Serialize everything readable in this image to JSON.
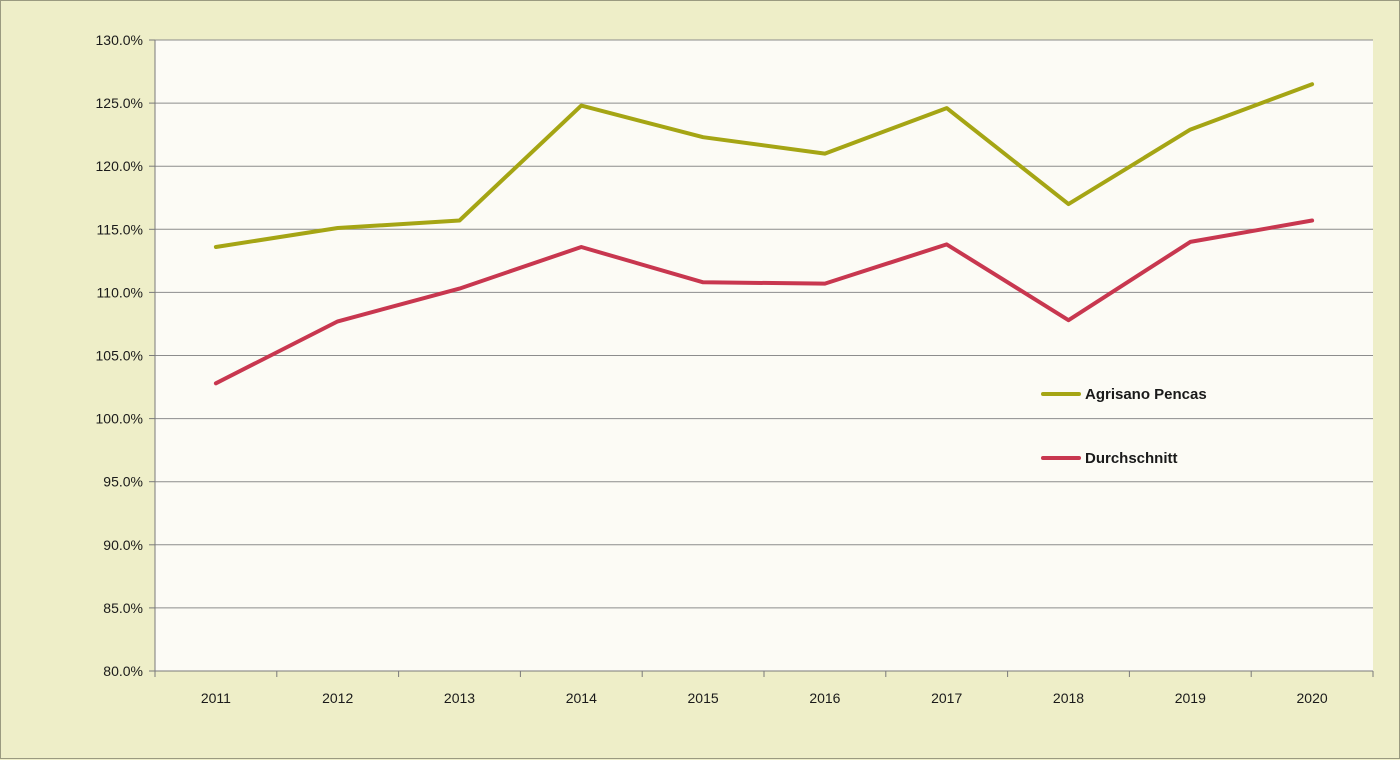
{
  "chart_data": {
    "type": "line",
    "title": "",
    "xlabel": "",
    "ylabel": "",
    "categories": [
      "2011",
      "2012",
      "2013",
      "2014",
      "2015",
      "2016",
      "2017",
      "2018",
      "2019",
      "2020"
    ],
    "ylim": [
      80,
      130
    ],
    "ytick_step": 5,
    "ytick_labels": [
      "80.0%",
      "85.0%",
      "90.0%",
      "95.0%",
      "100.0%",
      "105.0%",
      "110.0%",
      "115.0%",
      "120.0%",
      "125.0%",
      "130.0%"
    ],
    "grid": true,
    "legend_position": "right-middle",
    "series": [
      {
        "name": "Agrisano Pencas",
        "color": "#a5a514",
        "values": [
          113.6,
          115.1,
          115.7,
          124.8,
          122.3,
          121.0,
          124.6,
          117.0,
          122.9,
          126.5
        ]
      },
      {
        "name": "Durchschnitt",
        "color": "#c8374f",
        "values": [
          102.8,
          107.7,
          110.3,
          113.6,
          110.8,
          110.7,
          113.8,
          107.8,
          114.0,
          115.7
        ]
      }
    ],
    "colors": {
      "page_background": "#eeeec8",
      "plot_background": "#fcfbf5",
      "gridline": "#8c8c8c",
      "axis": "#7a7a7a"
    }
  }
}
